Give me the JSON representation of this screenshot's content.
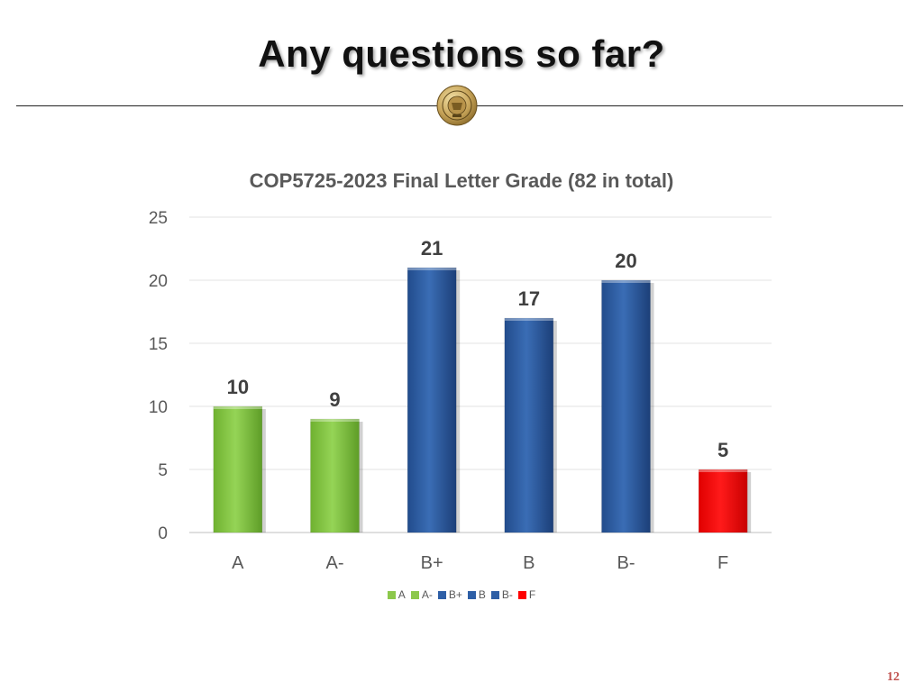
{
  "slide": {
    "title": "Any questions so far?",
    "page_number": "12"
  },
  "colors": {
    "green": "#92d050",
    "blue": "#2e5fa6",
    "red": "#ff0000"
  },
  "chart_data": {
    "type": "bar",
    "title": "COP5725-2023 Final Letter Grade (82 in total)",
    "xlabel": "",
    "ylabel": "",
    "categories": [
      "A",
      "A-",
      "B+",
      "B",
      "B-",
      "F"
    ],
    "values": [
      10,
      9,
      21,
      17,
      20,
      5
    ],
    "bar_colors": [
      "#8cc84b",
      "#8cc84b",
      "#2e5fa6",
      "#2e5fa6",
      "#2e5fa6",
      "#ff0000"
    ],
    "ylim": [
      0,
      25
    ],
    "yticks": [
      0,
      5,
      10,
      15,
      20,
      25
    ],
    "grid": true,
    "data_labels": true,
    "legend": {
      "placement": "bottom",
      "entries": [
        "A",
        "A-",
        "B+",
        "B",
        "B-",
        "F"
      ]
    }
  }
}
